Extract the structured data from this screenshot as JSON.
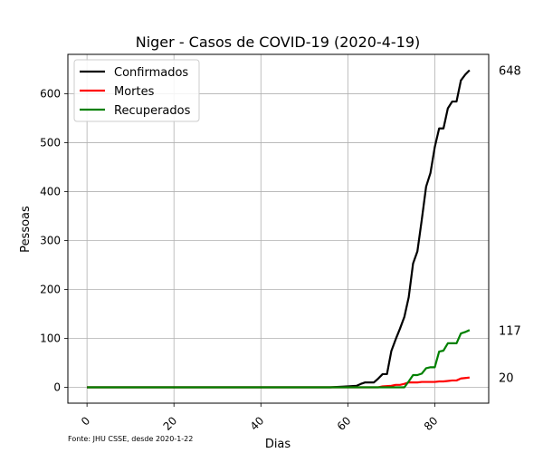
{
  "chart_data": {
    "type": "line",
    "title": "Niger - Casos de COVID-19 (2020-4-19)",
    "xlabel": "Dias",
    "ylabel": "Pessoas",
    "source_note": "Fonte: JHU CSSE, desde 2020-1-22",
    "xlim": [
      -4.4,
      92.4
    ],
    "ylim": [
      -32.4,
      680.4
    ],
    "xticks": [
      0,
      20,
      40,
      60,
      80
    ],
    "yticks": [
      0,
      100,
      200,
      300,
      400,
      500,
      600
    ],
    "grid": true,
    "legend": "top-left",
    "series": [
      {
        "name": "Confirmados",
        "color": "#000000",
        "end_label": "648",
        "points": [
          [
            0,
            0
          ],
          [
            56,
            0
          ],
          [
            58,
            1
          ],
          [
            60,
            2
          ],
          [
            62,
            3
          ],
          [
            63,
            7
          ],
          [
            64,
            10
          ],
          [
            66,
            10
          ],
          [
            67,
            18
          ],
          [
            68,
            27
          ],
          [
            69,
            27
          ],
          [
            70,
            74
          ],
          [
            71,
            98
          ],
          [
            72,
            120
          ],
          [
            73,
            144
          ],
          [
            74,
            184
          ],
          [
            75,
            253
          ],
          [
            76,
            278
          ],
          [
            77,
            342
          ],
          [
            78,
            410
          ],
          [
            79,
            438
          ],
          [
            80,
            491
          ],
          [
            81,
            529
          ],
          [
            82,
            529
          ],
          [
            83,
            570
          ],
          [
            84,
            584
          ],
          [
            85,
            584
          ],
          [
            86,
            627
          ],
          [
            87,
            639
          ],
          [
            88,
            648
          ]
        ]
      },
      {
        "name": "Mortes",
        "color": "#ff0000",
        "end_label": "20",
        "points": [
          [
            0,
            0
          ],
          [
            67,
            0
          ],
          [
            68,
            2
          ],
          [
            70,
            3
          ],
          [
            71,
            5
          ],
          [
            72,
            5
          ],
          [
            73,
            7
          ],
          [
            74,
            10
          ],
          [
            76,
            10
          ],
          [
            77,
            11
          ],
          [
            80,
            11
          ],
          [
            81,
            12
          ],
          [
            82,
            12
          ],
          [
            83,
            13
          ],
          [
            84,
            14
          ],
          [
            85,
            14
          ],
          [
            86,
            18
          ],
          [
            87,
            19
          ],
          [
            88,
            20
          ]
        ]
      },
      {
        "name": "Recuperados",
        "color": "#008000",
        "end_label": "117",
        "points": [
          [
            0,
            0
          ],
          [
            73,
            0
          ],
          [
            74,
            12
          ],
          [
            75,
            25
          ],
          [
            76,
            25
          ],
          [
            77,
            28
          ],
          [
            78,
            39
          ],
          [
            79,
            41
          ],
          [
            80,
            41
          ],
          [
            81,
            73
          ],
          [
            82,
            75
          ],
          [
            83,
            90
          ],
          [
            84,
            90
          ],
          [
            85,
            90
          ],
          [
            86,
            110
          ],
          [
            87,
            113
          ],
          [
            88,
            117
          ]
        ]
      }
    ]
  }
}
